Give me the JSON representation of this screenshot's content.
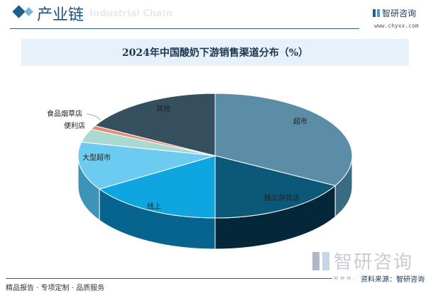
{
  "header": {
    "title": "产业链",
    "subtitle": "Industrial Chain",
    "logo_text": "智研咨询",
    "logo_url": "www.chyxx.com"
  },
  "chart_data": {
    "type": "pie",
    "style": "3d",
    "title": "2024年中国酸奶下游销售渠道分布（%）",
    "categories": [
      "超市",
      "独立杂货店",
      "线上",
      "大型超市",
      "便利店",
      "食品烟草店",
      "其他"
    ],
    "values": [
      33,
      17,
      16,
      12.5,
      3.5,
      1,
      17
    ],
    "colors": [
      "#5b8ea6",
      "#0b5878",
      "#0ea5e0",
      "#6ccbf0",
      "#a9d9d1",
      "#e88a6f",
      "#354f5f"
    ],
    "side_colors": [
      "#3a6b82",
      "#04283a",
      "#07648e",
      "#3d93b8",
      "#7fb3ab",
      "#b8604a",
      "#223642"
    ],
    "direction": "clockwise from top",
    "legend": "none"
  },
  "footer": {
    "slogan": "精品报告 · 专项定制 · 品质服务",
    "source": "资料来源：智研咨询",
    "watermark": "智研咨询",
    "www": "w w w ."
  }
}
